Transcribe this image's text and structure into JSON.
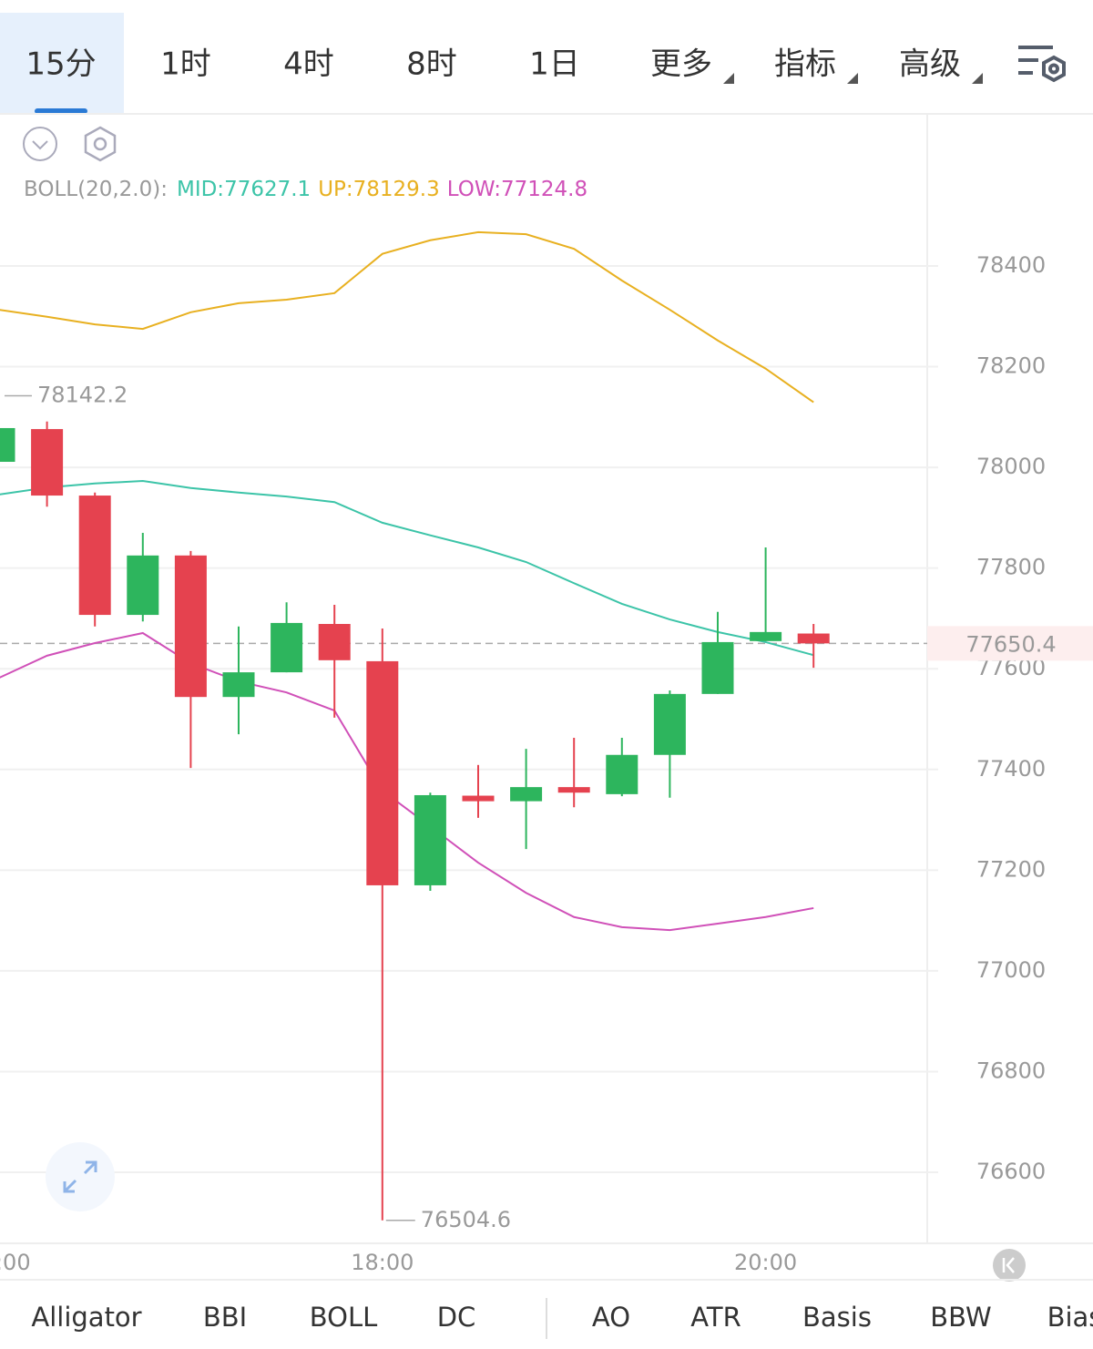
{
  "tabs": {
    "timeframes": [
      "15分",
      "1时",
      "4时",
      "8时",
      "1日"
    ],
    "menus": [
      "更多",
      "指标",
      "高级"
    ],
    "active": 0
  },
  "indicator_tabs": {
    "main": [
      "Alligator",
      "BBI",
      "BOLL",
      "DC"
    ],
    "sub": [
      "AO",
      "ATR",
      "Basis",
      "BBW",
      "Bias"
    ],
    "active": 2
  },
  "chart_data": {
    "type": "candlestick",
    "indicator": "BOLL(20,2.0):",
    "x": [
      "16:00",
      "16:15",
      "16:30",
      "16:45",
      "17:00",
      "17:15",
      "17:30",
      "17:45",
      "18:00",
      "18:15",
      "18:30",
      "18:45",
      "19:00",
      "19:15",
      "19:30",
      "19:45",
      "20:00",
      "20:15"
    ],
    "open": [
      78011,
      78076,
      77944,
      77707,
      77825,
      77544,
      77593,
      77689,
      77615,
      77170,
      77348,
      77337,
      77365,
      77351,
      77429,
      77550,
      77655,
      77670
    ],
    "high": [
      78142.2,
      78091,
      77950,
      77870,
      77834,
      77684,
      77732,
      77727,
      77680,
      77354,
      77409,
      77441,
      77463,
      77463,
      77557,
      77713,
      77841,
      77689
    ],
    "low": [
      78000,
      77922,
      77684,
      77694,
      77403,
      77470,
      77593,
      77503,
      76504.6,
      77159,
      77304,
      77242,
      77325,
      77347,
      77344,
      77550,
      77655,
      77602
    ],
    "close": [
      78078,
      77944,
      77707,
      77825,
      77544,
      77593,
      77691,
      77617,
      77170,
      77349,
      77337,
      77365,
      77354,
      77429,
      77550,
      77653,
      77673,
      77650.4
    ],
    "up_color": "#2db55d",
    "down_color": "#e5424f",
    "bands": [
      {
        "name": "MID:",
        "color": "#3cc4a8",
        "values": [
          77946,
          77960,
          77968,
          77973,
          77959,
          77950,
          77942,
          77931,
          77890,
          77865,
          77841,
          77812,
          77770,
          77729,
          77698,
          77673,
          77653,
          77627.1
        ]
      },
      {
        "name": "UP:",
        "color": "#e8b020",
        "values": [
          78313,
          78299,
          78284,
          78275,
          78308,
          78326,
          78333,
          78346,
          78424,
          78451,
          78467,
          78463,
          78434,
          78371,
          78313,
          78252,
          78196,
          78129.3
        ]
      },
      {
        "name": "LOW:",
        "color": "#d050b8",
        "values": [
          77582,
          77626,
          77651,
          77671,
          77611,
          77575,
          77553,
          77517,
          77358,
          77287,
          77215,
          77155,
          77107,
          77087,
          77081,
          77094,
          77107,
          77124.8
        ]
      }
    ],
    "ylim": [
      76459,
      78702
    ],
    "yticks": [
      76600,
      76800,
      77000,
      77200,
      77400,
      77600,
      77800,
      78000,
      78200,
      78400
    ],
    "grid": true
  }
}
